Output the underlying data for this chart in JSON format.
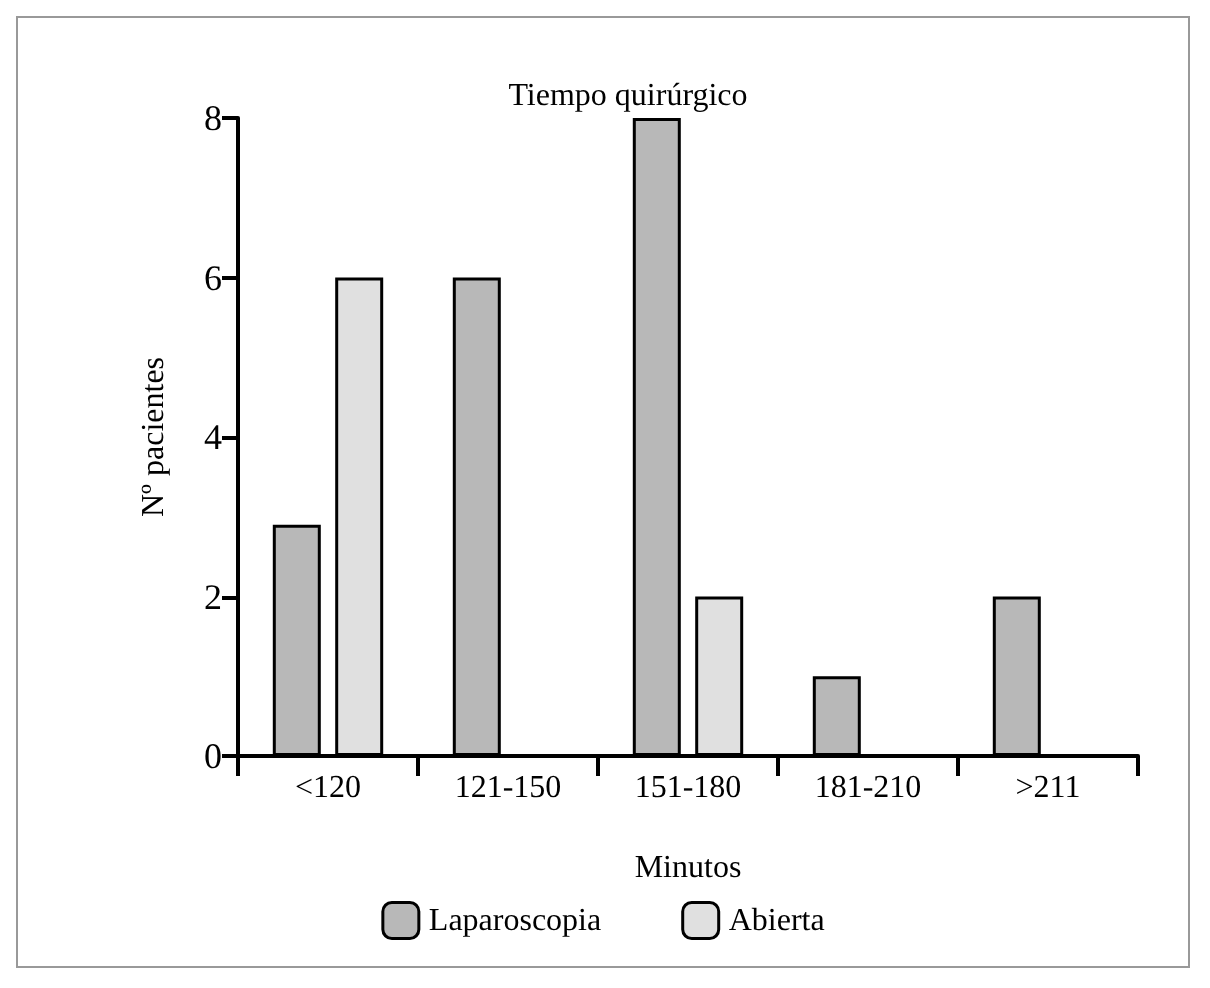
{
  "chart_data": {
    "type": "bar",
    "title": "Tiempo quirúrgico",
    "xlabel": "Minutos",
    "ylabel": "Nº pacientes",
    "categories": [
      "<120",
      "121-150",
      "151-180",
      "181-210",
      ">211"
    ],
    "series": [
      {
        "name": "Laparoscopia",
        "color": "#b8b8b8",
        "values": [
          2.9,
          6,
          8,
          1,
          2
        ]
      },
      {
        "name": "Abierta",
        "color": "#e0e0e0",
        "values": [
          6,
          null,
          2,
          null,
          null
        ]
      }
    ],
    "ylim": [
      0,
      8
    ],
    "yticks": [
      0,
      2,
      4,
      6,
      8
    ],
    "grid": false,
    "legend": "bottom"
  }
}
